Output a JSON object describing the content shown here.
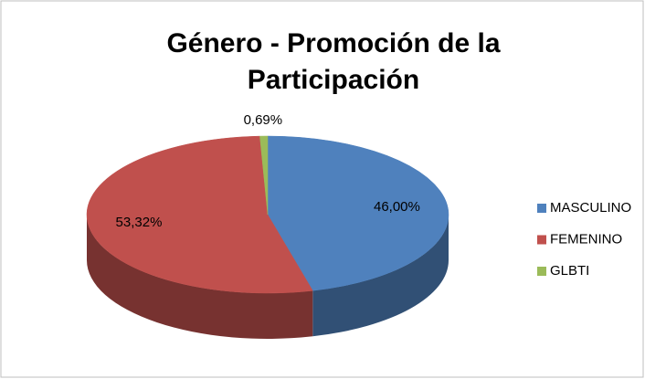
{
  "chart_data": {
    "type": "pie",
    "title": "Género - Promoción de la Participación",
    "categories": [
      "MASCULINO",
      "FEMENINO",
      "GLBTI"
    ],
    "values": [
      46.0,
      53.32,
      0.69
    ],
    "value_labels": [
      "46,00%",
      "53,32%",
      "0,69%"
    ],
    "colors": [
      "#4f81bd",
      "#c0504d",
      "#9bbb59"
    ],
    "legend": "right"
  }
}
